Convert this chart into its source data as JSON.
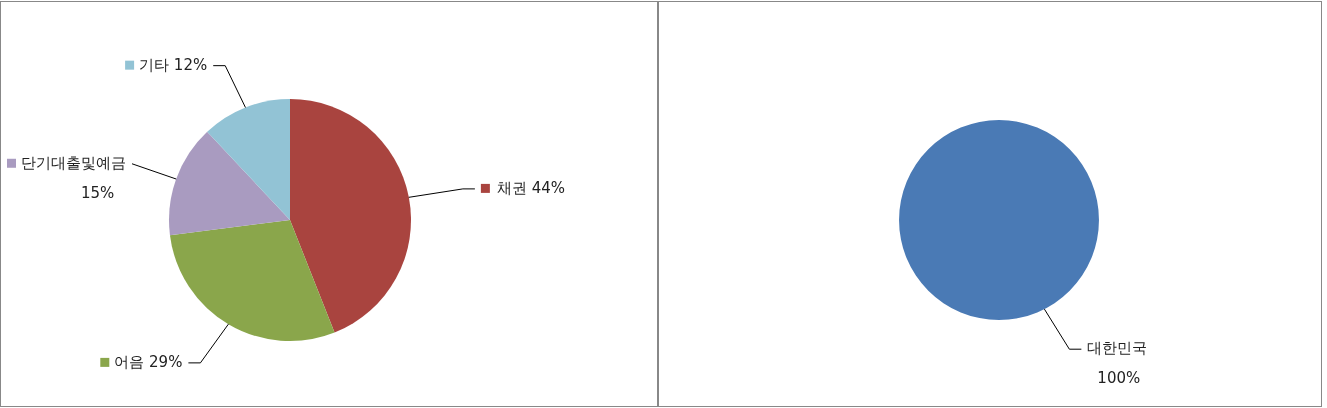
{
  "chart_data": [
    {
      "type": "pie",
      "categories": [
        "채권",
        "어음",
        "단기대출및예금",
        "기타"
      ],
      "values": [
        44,
        29,
        15,
        12
      ],
      "colors": [
        "#a9443f",
        "#8aa64b",
        "#a99bc0",
        "#92c3d5"
      ],
      "value_labels": [
        "44%",
        "29%",
        "15%",
        "12%"
      ],
      "legend": "left"
    },
    {
      "type": "pie",
      "categories": [
        "대한민국"
      ],
      "values": [
        100
      ],
      "colors": [
        "#4a7ab5"
      ],
      "value_labels": [
        "100%"
      ]
    }
  ]
}
